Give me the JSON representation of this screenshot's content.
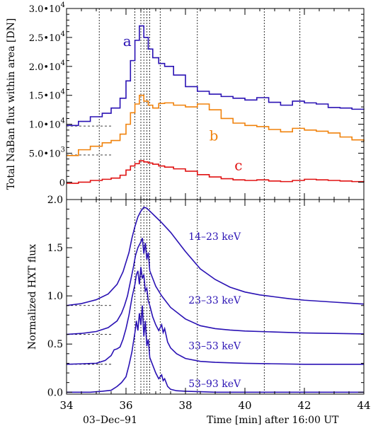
{
  "chart_data": [
    {
      "type": "line",
      "panel": "top",
      "ylabel": "Total NaBan flux within area [DN]",
      "ylim": [
        -3000,
        30000
      ],
      "xlim": [
        34,
        44
      ],
      "yticks": [
        {
          "value": 0,
          "label": "0"
        },
        {
          "value": 5000,
          "label": "5.0•10",
          "exp": "3"
        },
        {
          "value": 10000,
          "label": "1.0•10",
          "exp": "4"
        },
        {
          "value": 15000,
          "label": "1.5•10",
          "exp": "4"
        },
        {
          "value": 20000,
          "label": "2.0•10",
          "exp": "4"
        },
        {
          "value": 25000,
          "label": "2.5•10",
          "exp": "4"
        },
        {
          "value": 30000,
          "label": "3.0•10",
          "exp": "4"
        }
      ],
      "series": [
        {
          "name": "a",
          "color": "#2a12b4",
          "style": "step",
          "label_at": [
            35.9,
            23500
          ],
          "x": [
            34.0,
            34.4,
            34.8,
            35.2,
            35.5,
            35.8,
            36.0,
            36.15,
            36.3,
            36.45,
            36.6,
            36.75,
            36.9,
            37.1,
            37.3,
            37.6,
            38.0,
            38.4,
            38.8,
            39.2,
            39.6,
            40.0,
            40.4,
            40.8,
            41.2,
            41.6,
            42.0,
            42.4,
            42.8,
            43.2,
            43.6,
            44.0
          ],
          "y": [
            9800,
            10500,
            11300,
            11900,
            12800,
            14500,
            17500,
            21000,
            24500,
            27000,
            25000,
            23000,
            21500,
            20500,
            20000,
            18500,
            16500,
            15700,
            15200,
            14800,
            14500,
            14200,
            14600,
            13800,
            13300,
            14000,
            13700,
            13500,
            12900,
            12800,
            12600,
            12500
          ]
        },
        {
          "name": "b",
          "color": "#f0820c",
          "style": "step",
          "label_at": [
            38.8,
            7200
          ],
          "x": [
            34.0,
            34.4,
            34.8,
            35.2,
            35.5,
            35.8,
            36.0,
            36.15,
            36.3,
            36.45,
            36.6,
            36.75,
            36.9,
            37.1,
            37.3,
            37.6,
            38.0,
            38.4,
            38.8,
            39.2,
            39.6,
            40.0,
            40.4,
            40.8,
            41.2,
            41.6,
            42.0,
            42.4,
            42.8,
            43.2,
            43.6,
            44.0
          ],
          "y": [
            4600,
            5600,
            6200,
            6800,
            7200,
            8300,
            10000,
            12000,
            13500,
            15000,
            14000,
            13300,
            12800,
            13600,
            13700,
            13300,
            13000,
            13500,
            12500,
            11000,
            10200,
            9800,
            9600,
            9100,
            8700,
            9300,
            9000,
            8800,
            8500,
            7800,
            7300,
            7000
          ]
        },
        {
          "name": "c",
          "color": "#e01212",
          "style": "step",
          "label_at": [
            39.65,
            2100
          ],
          "x": [
            34.0,
            34.4,
            34.8,
            35.2,
            35.5,
            35.8,
            36.0,
            36.15,
            36.3,
            36.45,
            36.6,
            36.75,
            36.9,
            37.1,
            37.3,
            37.6,
            38.0,
            38.4,
            38.8,
            39.2,
            39.6,
            40.0,
            40.4,
            40.8,
            41.2,
            41.6,
            42.0,
            42.4,
            42.8,
            43.2,
            43.6,
            44.0
          ],
          "y": [
            -200,
            0,
            300,
            500,
            700,
            1200,
            2100,
            2800,
            3200,
            3700,
            3500,
            3300,
            3100,
            2800,
            2600,
            2300,
            1900,
            1300,
            900,
            600,
            400,
            300,
            400,
            200,
            100,
            300,
            500,
            400,
            300,
            200,
            100,
            0
          ]
        }
      ],
      "dashed_levels": [
        {
          "y": 9700,
          "x_from": 34.0,
          "x_to": 35.55
        },
        {
          "y": 4700,
          "x_from": 34.0,
          "x_to": 35.55
        }
      ],
      "vertical_lines": [
        35.1,
        36.3,
        36.5,
        36.6,
        36.7,
        36.8,
        37.15,
        38.4,
        40.65,
        41.85
      ]
    },
    {
      "type": "line",
      "panel": "bottom",
      "xlabel": "Time [min] after 16:00 UT",
      "xlabel_left": "03–Dec–91",
      "ylabel": "Normalized HXT flux",
      "ylim": [
        -0.02,
        2.0
      ],
      "xlim": [
        34,
        44
      ],
      "xticks": [
        34,
        36,
        38,
        40,
        42,
        44
      ],
      "yticks": [
        "0.0",
        "0.5",
        "1.0",
        "1.5",
        "2.0"
      ],
      "series": [
        {
          "name": "14–23 keV",
          "color": "#2a12b4",
          "label_at": [
            38.1,
            1.58
          ],
          "x": [
            34.0,
            34.5,
            35.0,
            35.4,
            35.7,
            35.9,
            36.1,
            36.2,
            36.3,
            36.4,
            36.5,
            36.6,
            36.7,
            36.8,
            37.0,
            37.2,
            37.5,
            38.0,
            38.5,
            39.0,
            39.5,
            40.0,
            40.5,
            41.0,
            41.5,
            42.0,
            42.5,
            43.0,
            43.5,
            44.0
          ],
          "y": [
            0.9,
            0.92,
            0.96,
            1.02,
            1.12,
            1.25,
            1.45,
            1.6,
            1.72,
            1.82,
            1.88,
            1.92,
            1.91,
            1.88,
            1.82,
            1.76,
            1.66,
            1.46,
            1.28,
            1.17,
            1.09,
            1.04,
            1.01,
            0.99,
            0.97,
            0.955,
            0.945,
            0.935,
            0.925,
            0.915
          ]
        },
        {
          "name": "23–33 keV",
          "color": "#2a12b4",
          "label_at": [
            38.1,
            0.92
          ],
          "x": [
            34.0,
            34.5,
            35.0,
            35.4,
            35.7,
            35.85,
            35.95,
            36.05,
            36.15,
            36.25,
            36.32,
            36.4,
            36.5,
            36.55,
            36.6,
            36.65,
            36.7,
            36.75,
            36.8,
            36.9,
            37.0,
            37.2,
            37.5,
            38.0,
            38.5,
            39.0,
            39.5,
            40.0,
            41.0,
            42.0,
            43.0,
            44.0
          ],
          "y": [
            0.6,
            0.61,
            0.63,
            0.67,
            0.74,
            0.82,
            0.9,
            1.0,
            1.15,
            1.3,
            1.42,
            1.5,
            1.56,
            1.6,
            1.44,
            1.55,
            1.38,
            1.45,
            1.26,
            1.18,
            1.1,
            1.0,
            0.88,
            0.76,
            0.69,
            0.66,
            0.645,
            0.635,
            0.625,
            0.615,
            0.61,
            0.605
          ]
        },
        {
          "name": "33–53 keV",
          "color": "#2a12b4",
          "label_at": [
            38.1,
            0.445
          ],
          "x": [
            34.0,
            34.5,
            35.0,
            35.3,
            35.5,
            35.6,
            35.7,
            35.8,
            35.9,
            36.0,
            36.1,
            36.2,
            36.3,
            36.35,
            36.4,
            36.45,
            36.5,
            36.55,
            36.6,
            36.65,
            36.7,
            36.75,
            36.8,
            36.9,
            37.0,
            37.1,
            37.2,
            37.25,
            37.3,
            37.4,
            37.5,
            37.7,
            38.0,
            38.5,
            39.0,
            40.0,
            41.0,
            42.0,
            43.0,
            44.0
          ],
          "y": [
            0.29,
            0.295,
            0.3,
            0.33,
            0.38,
            0.44,
            0.45,
            0.47,
            0.55,
            0.66,
            0.8,
            0.98,
            1.12,
            1.22,
            1.26,
            1.12,
            1.3,
            1.18,
            1.22,
            1.05,
            1.08,
            0.95,
            0.9,
            0.78,
            0.7,
            0.64,
            0.7,
            0.62,
            0.66,
            0.52,
            0.46,
            0.4,
            0.35,
            0.32,
            0.31,
            0.3,
            0.295,
            0.29,
            0.29,
            0.29
          ]
        },
        {
          "name": "53–93 keV",
          "color": "#2a12b4",
          "label_at": [
            38.1,
            0.055
          ],
          "x": [
            34.0,
            34.8,
            35.2,
            35.5,
            35.7,
            35.85,
            36.0,
            36.1,
            36.2,
            36.3,
            36.35,
            36.4,
            36.45,
            36.5,
            36.55,
            36.6,
            36.65,
            36.7,
            36.75,
            36.8,
            36.9,
            37.0,
            37.1,
            37.2,
            37.25,
            37.3,
            37.4,
            37.5,
            37.7,
            38.0,
            38.5,
            39.0,
            40.0,
            41.0,
            42.0,
            43.0,
            44.0
          ],
          "y": [
            0.0,
            0.0,
            0.01,
            0.02,
            0.06,
            0.1,
            0.16,
            0.28,
            0.42,
            0.62,
            0.74,
            0.64,
            0.82,
            0.7,
            0.9,
            0.58,
            0.74,
            0.48,
            0.55,
            0.36,
            0.28,
            0.2,
            0.14,
            0.18,
            0.12,
            0.14,
            0.06,
            0.03,
            0.015,
            0.01,
            0.005,
            0.0,
            0.0,
            0.0,
            0.0,
            0.0,
            0.0
          ]
        }
      ],
      "dashed_levels": [
        {
          "y": 0.9,
          "x_from": 34.0,
          "x_to": 35.55
        },
        {
          "y": 0.6,
          "x_from": 34.0,
          "x_to": 35.55
        },
        {
          "y": 0.29,
          "x_from": 34.0,
          "x_to": 35.55
        }
      ],
      "vertical_lines": [
        35.1,
        36.3,
        36.5,
        36.6,
        36.7,
        36.8,
        37.15,
        38.4,
        40.65,
        41.85
      ]
    }
  ]
}
